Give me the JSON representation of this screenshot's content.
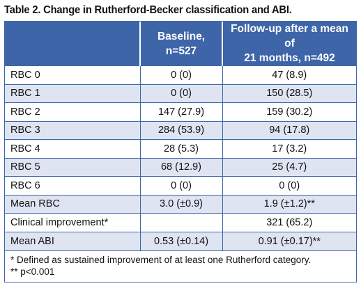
{
  "table": {
    "title": "Table 2. Change in Rutherford-Becker classification and ABI.",
    "headers": [
      "",
      "Baseline,\nn=527",
      "Follow-up after a mean of 21 months, n=492"
    ],
    "rows": [
      {
        "label": "RBC 0",
        "baseline": "0 (0)",
        "followup": "47 (8.9)"
      },
      {
        "label": "RBC 1",
        "baseline": "0 (0)",
        "followup": "150 (28.5)"
      },
      {
        "label": "RBC 2",
        "baseline": "147 (27.9)",
        "followup": "159 (30.2)"
      },
      {
        "label": "RBC 3",
        "baseline": "284 (53.9)",
        "followup": "94 (17.8)"
      },
      {
        "label": "RBC 4",
        "baseline": "28 (5.3)",
        "followup": "17 (3.2)"
      },
      {
        "label": "RBC 5",
        "baseline": "68 (12.9)",
        "followup": "25 (4.7)"
      },
      {
        "label": "RBC 6",
        "baseline": "0 (0)",
        "followup": "0 (0)"
      },
      {
        "label": "Mean RBC",
        "baseline": "3.0 (±0.9)",
        "followup": "1.9 (±1.2)**"
      },
      {
        "label": "Clinical improvement*",
        "baseline": "",
        "followup": "321 (65.2)"
      },
      {
        "label": "Mean ABI",
        "baseline": "0.53 (±0.14)",
        "followup": "0.91 (±0.17)**"
      }
    ],
    "footnotes": [
      "* Defined as sustained improvement of at least one Rutherford category.",
      "** p<0.001"
    ]
  },
  "colors": {
    "header_bg": "#3e65a8",
    "header_text": "#ffffff",
    "stripe_bg": "#dee4f1",
    "border": "#3e65a8"
  }
}
